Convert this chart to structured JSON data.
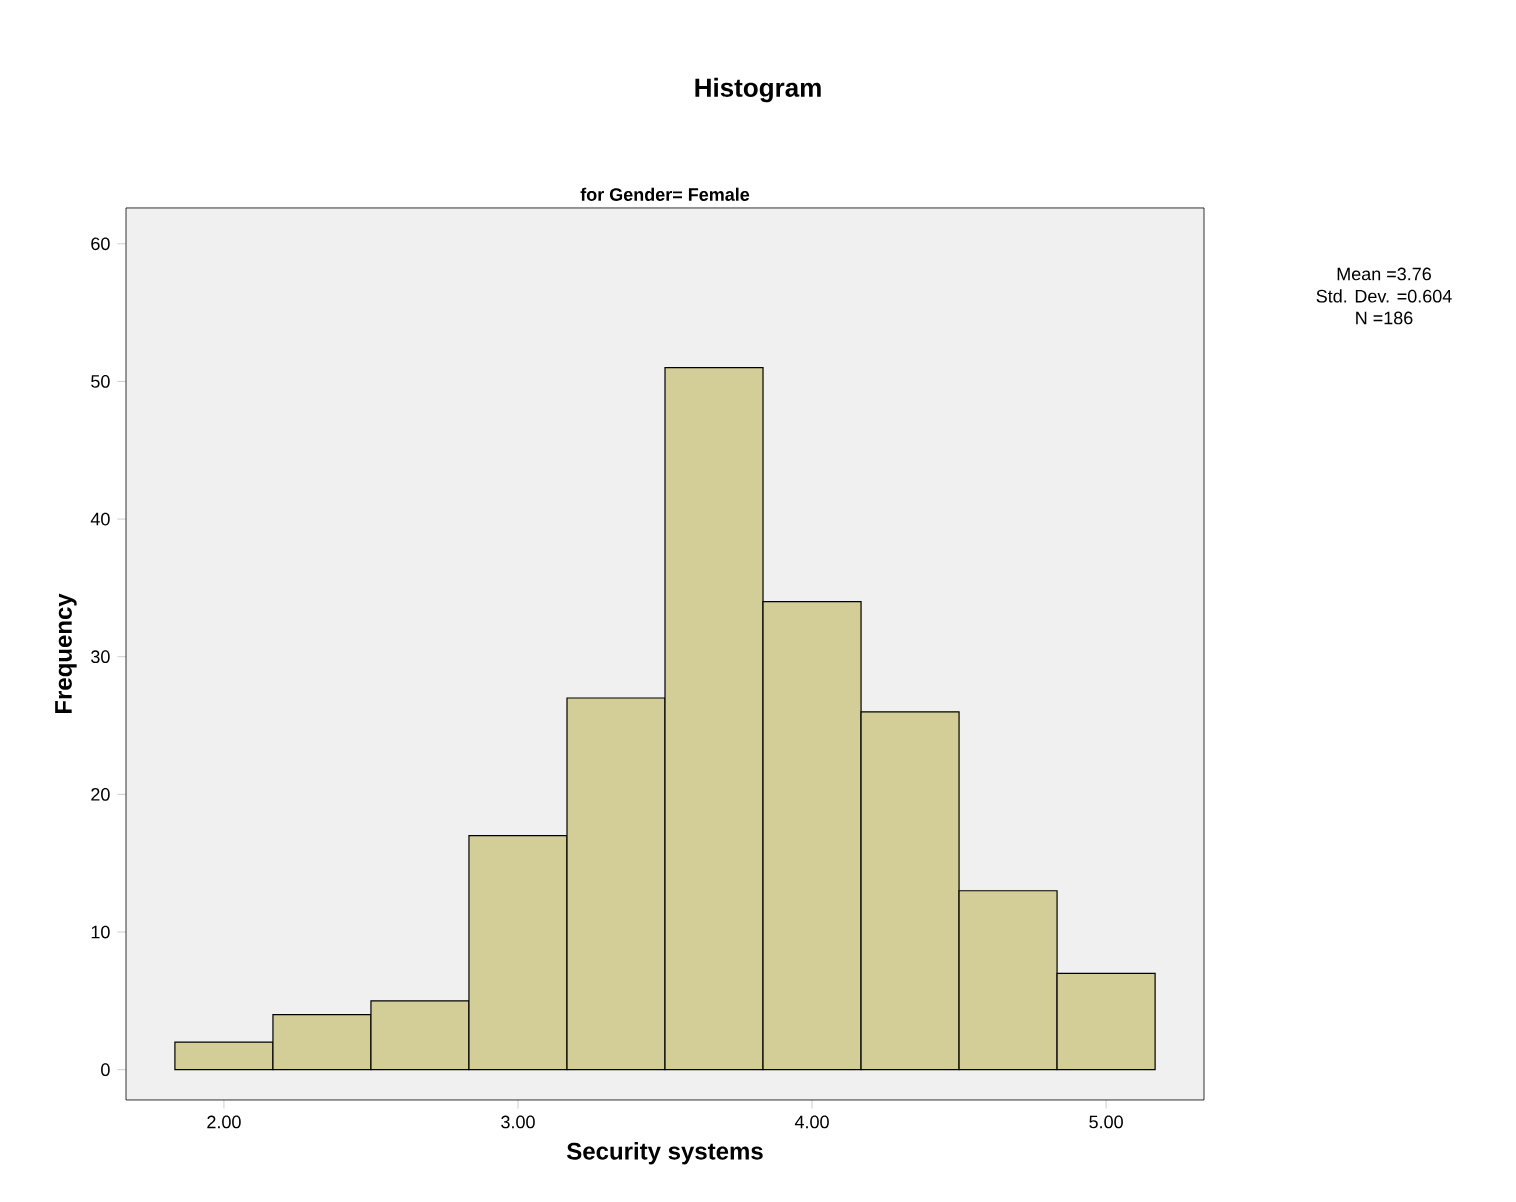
{
  "chart_data": {
    "type": "histogram",
    "title": "Histogram",
    "subtitle": "for Gender= Female",
    "xlabel": "Security systems",
    "ylabel": "Frequency",
    "bins": [
      1.8333,
      2.1667,
      2.5,
      2.8333,
      3.1667,
      3.5,
      3.8333,
      4.1667,
      4.5,
      4.8333,
      5.1667
    ],
    "values": [
      2,
      4,
      5,
      17,
      27,
      51,
      34,
      26,
      13,
      7
    ],
    "color": "#d3ce97",
    "xlim": [
      1.667,
      5.333
    ],
    "ylim": [
      -2.2,
      62.6
    ],
    "xticks": [
      {
        "value": 2,
        "label": "2.00"
      },
      {
        "value": 3,
        "label": "3.00"
      },
      {
        "value": 4,
        "label": "4.00"
      },
      {
        "value": 5,
        "label": "5.00"
      }
    ],
    "yticks": [
      0,
      10,
      20,
      30,
      40,
      50,
      60
    ],
    "annotations": [
      "Mean =3.76",
      "Std. Dev. =0.604",
      "N =186"
    ]
  }
}
